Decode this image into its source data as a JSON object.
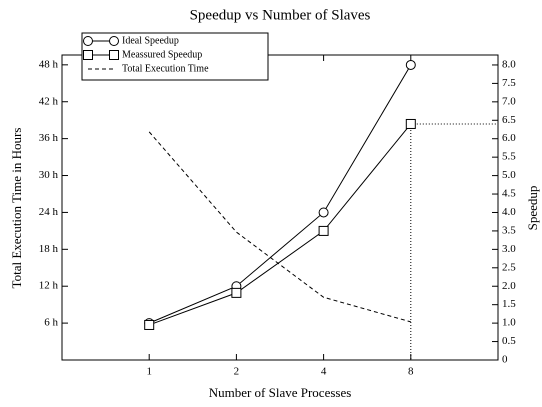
{
  "chart_data": {
    "type": "line",
    "title": "Speedup vs Number of Slaves",
    "xlabel": "Number of Slave Processes",
    "ylabel": "Total Execution Time in Hours",
    "y2label": "Speedup",
    "xscale": "log",
    "xlim": [
      0.5,
      16
    ],
    "xticks": [
      1,
      2,
      4,
      8
    ],
    "ylim": [
      0,
      49.6
    ],
    "yticks": [
      {
        "value": 6,
        "label": "6 h"
      },
      {
        "value": 12,
        "label": "12 h"
      },
      {
        "value": 18,
        "label": "18 h"
      },
      {
        "value": 24,
        "label": "24 h"
      },
      {
        "value": 30,
        "label": "30 h"
      },
      {
        "value": 36,
        "label": "36 h"
      },
      {
        "value": 42,
        "label": "42 h"
      },
      {
        "value": 48,
        "label": "48 h"
      }
    ],
    "y2lim": [
      0,
      8.27
    ],
    "y2ticks": [
      0,
      0.5,
      {
        "value": 1,
        "label": "1.0"
      },
      1.5,
      {
        "value": 2,
        "label": "2.0"
      },
      2.5,
      {
        "value": 3,
        "label": "3.0"
      },
      3.5,
      {
        "value": 4,
        "label": "4.0"
      },
      4.5,
      {
        "value": 5,
        "label": "5.0"
      },
      5.5,
      {
        "value": 6,
        "label": "6.0"
      },
      6.5,
      {
        "value": 7,
        "label": "7.0"
      },
      7.5,
      {
        "value": 8,
        "label": "8.0"
      }
    ],
    "legend": "upper left",
    "x": [
      1,
      2,
      4,
      8
    ],
    "series": [
      {
        "name": "Ideal Speedup",
        "color": "#000000",
        "marker": "circle",
        "line_style": "solid",
        "axis": "y2",
        "values": [
          1,
          2,
          4,
          8
        ]
      },
      {
        "name": "Meassured Speedup",
        "color": "#000000",
        "marker": "square",
        "line_style": "solid",
        "axis": "y2",
        "values": [
          0.95,
          1.82,
          3.5,
          6.4
        ]
      },
      {
        "name": "Total Execution Time",
        "color": "#000000",
        "marker": "none",
        "line_style": "dashed",
        "values": [
          37.1,
          20.8,
          10.2,
          6.2
        ]
      }
    ]
  }
}
